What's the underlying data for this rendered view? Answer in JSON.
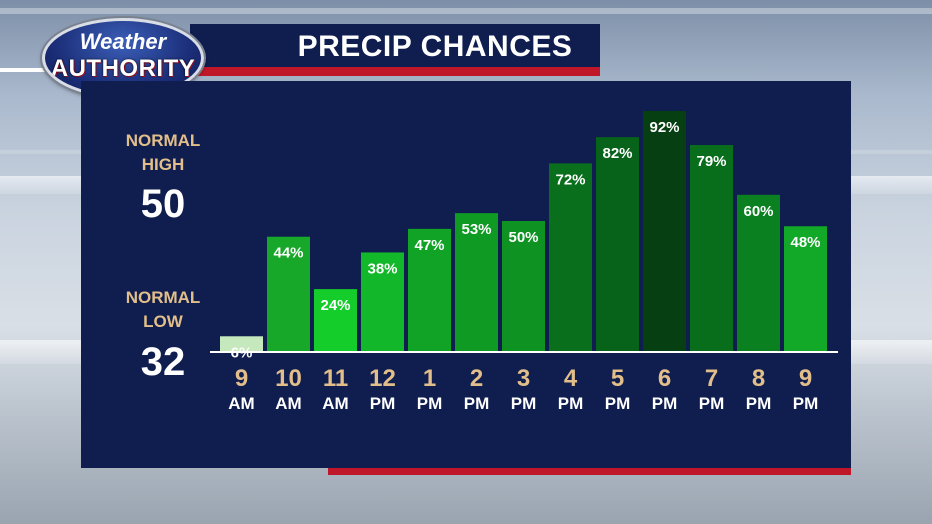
{
  "logo": {
    "line1": "Weather",
    "line2": "AUTHORITY"
  },
  "title": "PRECIP CHANCES",
  "normals": {
    "high_label_line1": "NORMAL",
    "high_label_line2": "HIGH",
    "high_value": "50",
    "low_label_line1": "NORMAL",
    "low_label_line2": "LOW",
    "low_value": "32"
  },
  "colors": {
    "panel": "#0f1d4f",
    "accent_red": "#c0162a",
    "label_tan": "#e2bf8a"
  },
  "chart_data": {
    "type": "bar",
    "categories": [
      {
        "hour": "9",
        "period": "AM"
      },
      {
        "hour": "10",
        "period": "AM"
      },
      {
        "hour": "11",
        "period": "AM"
      },
      {
        "hour": "12",
        "period": "PM"
      },
      {
        "hour": "1",
        "period": "PM"
      },
      {
        "hour": "2",
        "period": "PM"
      },
      {
        "hour": "3",
        "period": "PM"
      },
      {
        "hour": "4",
        "period": "PM"
      },
      {
        "hour": "5",
        "period": "PM"
      },
      {
        "hour": "6",
        "period": "PM"
      },
      {
        "hour": "7",
        "period": "PM"
      },
      {
        "hour": "8",
        "period": "PM"
      },
      {
        "hour": "9",
        "period": "PM"
      }
    ],
    "values": [
      6,
      44,
      24,
      38,
      47,
      53,
      50,
      72,
      82,
      92,
      79,
      60,
      48
    ],
    "value_labels": [
      "6%",
      "44%",
      "24%",
      "38%",
      "47%",
      "53%",
      "50%",
      "72%",
      "82%",
      "92%",
      "79%",
      "60%",
      "48%"
    ],
    "ylim": [
      0,
      100
    ],
    "grid": false,
    "bar_colors": [
      "#c6e8bd",
      "#17a82a",
      "#14cc2a",
      "#12b82a",
      "#10a326",
      "#0f9a24",
      "#0e9222",
      "#0a6f1c",
      "#08631a",
      "#063f12",
      "#086e1b",
      "#0a8020",
      "#12a828"
    ]
  }
}
